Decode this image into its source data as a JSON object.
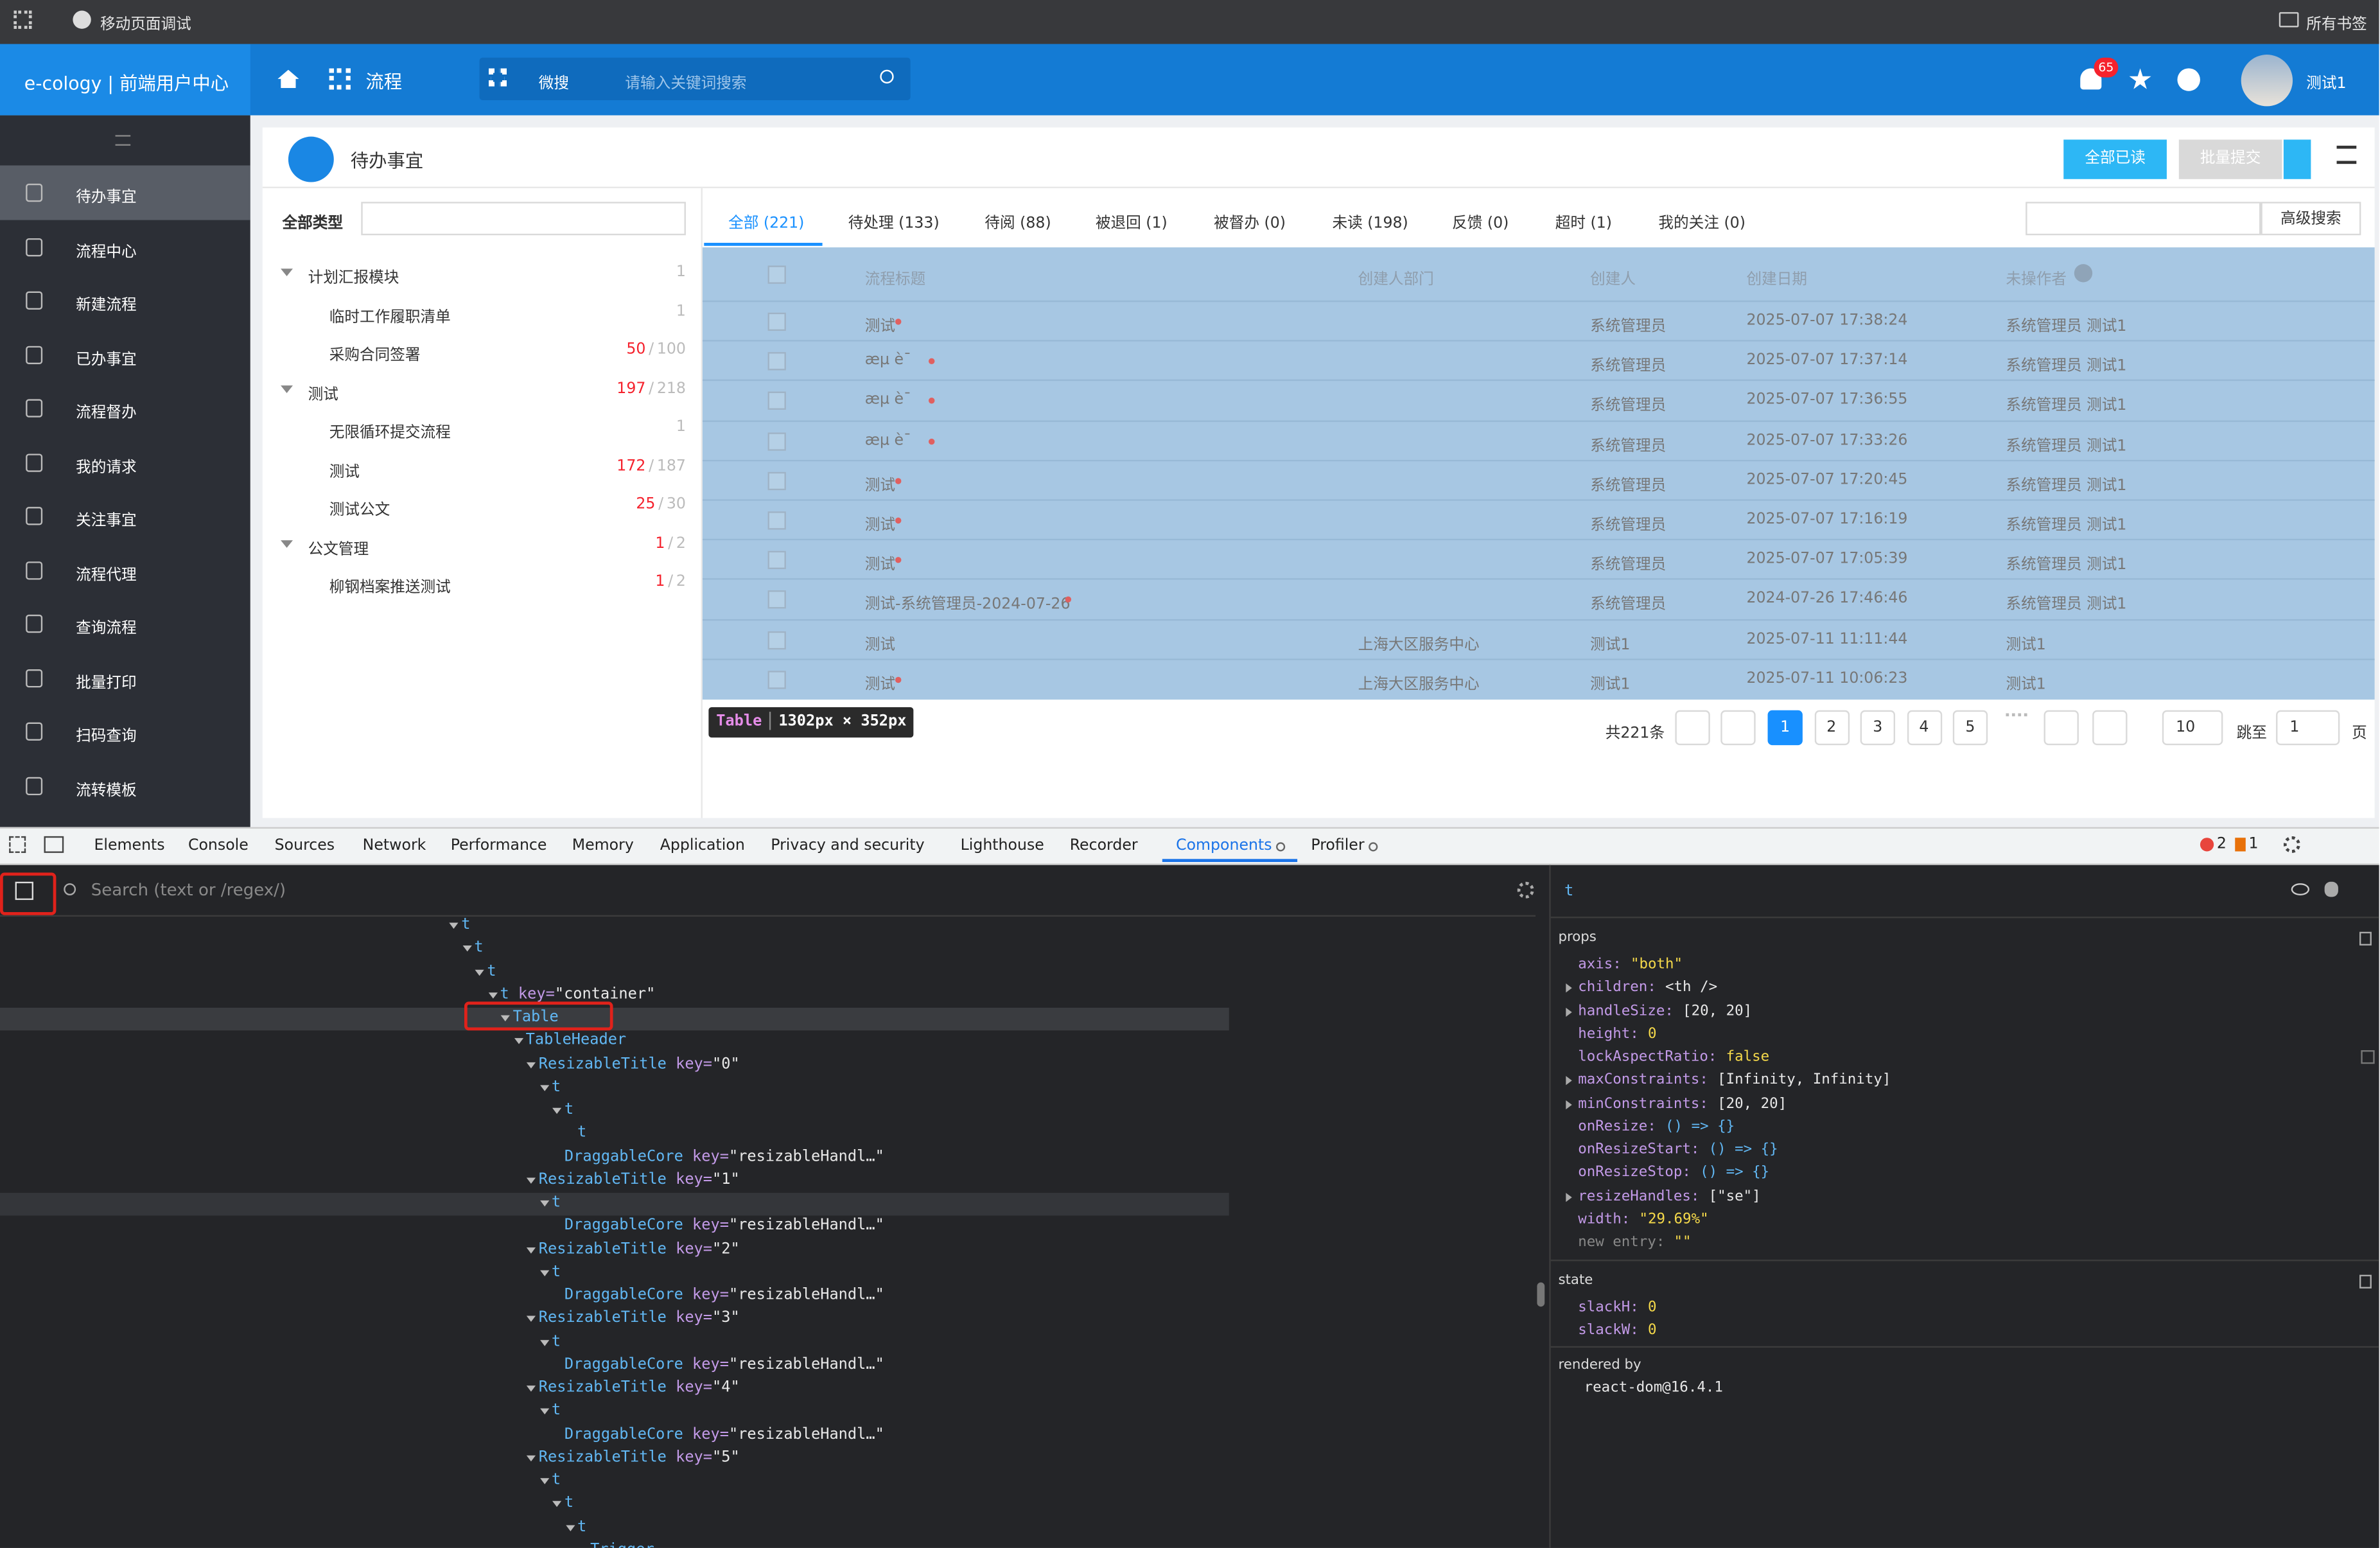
{
  "browser_bar": {
    "title": "移动页面调试",
    "bookmarks": "所有书签"
  },
  "header": {
    "brand": "e-cology | 前端用户中心",
    "module": "流程",
    "search_scope": "微搜",
    "search_placeholder": "请输入关键词搜索",
    "notification_count": "65",
    "user": "测试1"
  },
  "sidebar": {
    "items": [
      "待办事宜",
      "流程中心",
      "新建流程",
      "已办事宜",
      "流程督办",
      "我的请求",
      "关注事宜",
      "流程代理",
      "查询流程",
      "批量打印",
      "扫码查询",
      "流转模板"
    ]
  },
  "page": {
    "title": "待办事宜",
    "buttons": [
      "全部已读",
      "批量提交"
    ]
  },
  "tree": {
    "header": "全部类型",
    "nodes": [
      {
        "label": "计划汇报模块",
        "level": 0,
        "count": [
          "1"
        ]
      },
      {
        "label": "临时工作履职清单",
        "level": 1,
        "count": [
          "1"
        ]
      },
      {
        "label": "采购合同签署",
        "level": 1,
        "count": [
          "50",
          "/",
          "100"
        ]
      },
      {
        "label": "测试",
        "level": 0,
        "count": [
          "197",
          "/",
          "218"
        ]
      },
      {
        "label": "无限循环提交流程",
        "level": 1,
        "count": [
          "1"
        ]
      },
      {
        "label": "测试",
        "level": 1,
        "count": [
          "172",
          "/",
          "187"
        ]
      },
      {
        "label": "测试公文",
        "level": 1,
        "count": [
          "25",
          "/",
          "30"
        ]
      },
      {
        "label": "公文管理",
        "level": 0,
        "count": [
          "1",
          "/",
          "2"
        ]
      },
      {
        "label": "柳钢档案推送测试",
        "level": 1,
        "count": [
          "1",
          "/",
          "2"
        ]
      }
    ]
  },
  "tabs": [
    "全部 (221)",
    "待处理 (133)",
    "待阅 (88)",
    "被退回 (1)",
    "被督办 (0)",
    "未读 (198)",
    "反馈 (0)",
    "超时 (1)",
    "我的关注 (0)"
  ],
  "advanced_search": "高级搜索",
  "table": {
    "columns": [
      "流程标题",
      "创建人部门",
      "创建人",
      "创建日期",
      "未操作者"
    ],
    "rows": [
      [
        "测试",
        null,
        "系统管理员",
        "2025-07-07 17:38:24",
        "系统管理员 测试1"
      ],
      [
        "æµ è¯",
        null,
        "系统管理员",
        "2025-07-07 17:37:14",
        "系统管理员 测试1"
      ],
      [
        "æµ è¯",
        null,
        "系统管理员",
        "2025-07-07 17:36:55",
        "系统管理员 测试1"
      ],
      [
        "æµ è¯",
        null,
        "系统管理员",
        "2025-07-07 17:33:26",
        "系统管理员 测试1"
      ],
      [
        "测试",
        null,
        "系统管理员",
        "2025-07-07 17:20:45",
        "系统管理员 测试1"
      ],
      [
        "测试",
        null,
        "系统管理员",
        "2025-07-07 17:16:19",
        "系统管理员 测试1"
      ],
      [
        "测试",
        null,
        "系统管理员",
        "2025-07-07 17:05:39",
        "系统管理员 测试1"
      ],
      [
        "测试-系统管理员-2024-07-26",
        null,
        "系统管理员",
        "2024-07-26 17:46:46",
        "系统管理员 测试1"
      ],
      [
        "测试",
        "上海大区服务中心",
        "测试1",
        "2025-07-11 11:11:44",
        "测试1"
      ],
      [
        "测试",
        "上海大区服务中心",
        "测试1",
        "2025-07-11 10:06:23",
        "测试1"
      ]
    ]
  },
  "tooltip": {
    "tag": "Table",
    "size": "1302px × 352px"
  },
  "pagination": {
    "total": "共221条",
    "pages": [
      "1",
      "2",
      "3",
      "4",
      "5"
    ],
    "page_size": "10",
    "jump_label": "跳至",
    "jump_value": "1",
    "page_unit": "页"
  },
  "devtools": {
    "tabs": [
      "Elements",
      "Console",
      "Sources",
      "Network",
      "Performance",
      "Memory",
      "Application",
      "Privacy and security",
      "Lighthouse",
      "Recorder",
      "Components",
      "Profiler"
    ],
    "errors": "2",
    "warnings": "1",
    "search_placeholder": "Search (text or /regex/)",
    "tree": [
      {
        "depth": 0,
        "name": "t"
      },
      {
        "depth": 1,
        "name": "t"
      },
      {
        "depth": 2,
        "name": "t"
      },
      {
        "depth": 3,
        "name": "t",
        "attr": "key=",
        "val": "\"container\""
      },
      {
        "depth": 4,
        "name": "Table"
      },
      {
        "depth": 5,
        "name": "TableHeader"
      },
      {
        "depth": 6,
        "name": "ResizableTitle",
        "attr": "key=",
        "val": "\"0\""
      },
      {
        "depth": 7,
        "name": "t"
      },
      {
        "depth": 8,
        "name": "t"
      },
      {
        "depth": 9,
        "name": "t"
      },
      {
        "depth": 8,
        "name": "DraggableCore",
        "attr": "key=",
        "val": "\"resizableHandl…\""
      },
      {
        "depth": 6,
        "name": "ResizableTitle",
        "attr": "key=",
        "val": "\"1\""
      },
      {
        "depth": 7,
        "name": "t"
      },
      {
        "depth": 8,
        "name": "DraggableCore",
        "attr": "key=",
        "val": "\"resizableHandl…\""
      },
      {
        "depth": 6,
        "name": "ResizableTitle",
        "attr": "key=",
        "val": "\"2\""
      },
      {
        "depth": 7,
        "name": "t"
      },
      {
        "depth": 8,
        "name": "DraggableCore",
        "attr": "key=",
        "val": "\"resizableHandl…\""
      },
      {
        "depth": 6,
        "name": "ResizableTitle",
        "attr": "key=",
        "val": "\"3\""
      },
      {
        "depth": 7,
        "name": "t"
      },
      {
        "depth": 8,
        "name": "DraggableCore",
        "attr": "key=",
        "val": "\"resizableHandl…\""
      },
      {
        "depth": 6,
        "name": "ResizableTitle",
        "attr": "key=",
        "val": "\"4\""
      },
      {
        "depth": 7,
        "name": "t"
      },
      {
        "depth": 8,
        "name": "DraggableCore",
        "attr": "key=",
        "val": "\"resizableHandl…\""
      },
      {
        "depth": 6,
        "name": "ResizableTitle",
        "attr": "key=",
        "val": "\"5\""
      },
      {
        "depth": 7,
        "name": "t"
      },
      {
        "depth": 8,
        "name": "t"
      },
      {
        "depth": 9,
        "name": "t"
      },
      {
        "depth": 10,
        "name": "Trigger"
      }
    ],
    "selected_component": "t",
    "props_label": "props",
    "props": [
      [
        "axis:",
        "\"both\""
      ],
      [
        "children:",
        "<th />"
      ],
      [
        "handleSize:",
        "[20, 20]"
      ],
      [
        "height:",
        "0"
      ],
      [
        "lockAspectRatio:",
        "false"
      ],
      [
        "maxConstraints:",
        "[Infinity, Infinity]"
      ],
      [
        "minConstraints:",
        "[20, 20]"
      ],
      [
        "onResize:",
        "() => {}"
      ],
      [
        "onResizeStart:",
        "() => {}"
      ],
      [
        "onResizeStop:",
        "() => {}"
      ],
      [
        "resizeHandles:",
        "[\"se\"]"
      ],
      [
        "width:",
        "\"29.69%\""
      ],
      [
        "new entry:",
        "\"\""
      ]
    ],
    "state_label": "state",
    "state": [
      [
        "slackH:",
        "0"
      ],
      [
        "slackW:",
        "0"
      ]
    ],
    "rendered_by_label": "rendered by",
    "rendered_by": "react-dom@16.4.1"
  }
}
